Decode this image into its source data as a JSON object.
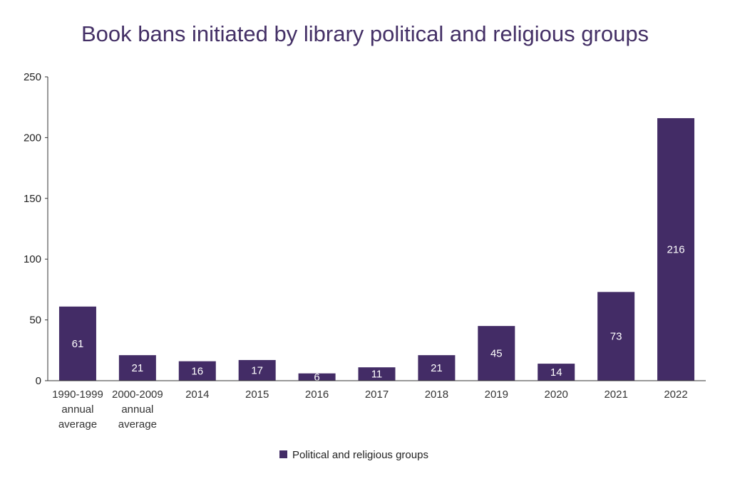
{
  "chart_data": {
    "type": "bar",
    "title": "Book bans initiated by library political and religious groups",
    "xlabel": "",
    "ylabel": "",
    "categories": [
      [
        "1990-1999",
        "annual",
        "average"
      ],
      [
        "2000-2009",
        "annual",
        "average"
      ],
      [
        "2014"
      ],
      [
        "2015"
      ],
      [
        "2016"
      ],
      [
        "2017"
      ],
      [
        "2018"
      ],
      [
        "2019"
      ],
      [
        "2020"
      ],
      [
        "2021"
      ],
      [
        "2022"
      ]
    ],
    "series": [
      {
        "name": "Political and religious groups",
        "values": [
          61,
          21,
          16,
          17,
          6,
          11,
          21,
          45,
          14,
          73,
          216
        ],
        "color": "#432c66"
      }
    ],
    "ylim": [
      0,
      250
    ],
    "yticks": [
      0,
      50,
      100,
      150,
      200,
      250
    ],
    "grid": false,
    "legend": "bottom-center",
    "data_labels": true
  }
}
